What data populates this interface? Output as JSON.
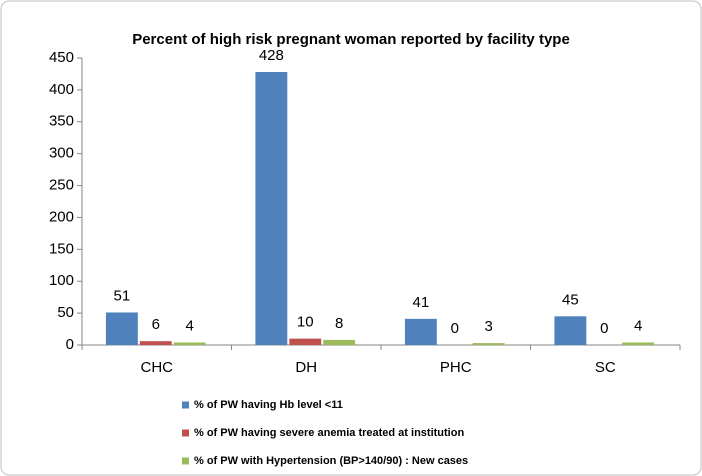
{
  "chart_data": {
    "type": "bar",
    "title": "Percent of high risk pregnant woman reported by facility type",
    "categories": [
      "CHC",
      "DH",
      "PHC",
      "SC"
    ],
    "series": [
      {
        "name": "% of PW having Hb level <11",
        "color": "#4f81bd",
        "values": [
          51,
          428,
          41,
          45
        ]
      },
      {
        "name": "% of PW having severe anemia treated at institution",
        "color": "#c0504d",
        "values": [
          6,
          10,
          0,
          0
        ]
      },
      {
        "name": "% of PW with Hypertension (BP>140/90) : New cases",
        "color": "#9bbb59",
        "values": [
          4,
          8,
          3,
          4
        ]
      }
    ],
    "ylim": [
      0,
      450
    ],
    "yticks": [
      0,
      50,
      100,
      150,
      200,
      250,
      300,
      350,
      400,
      450
    ],
    "grid": false
  }
}
